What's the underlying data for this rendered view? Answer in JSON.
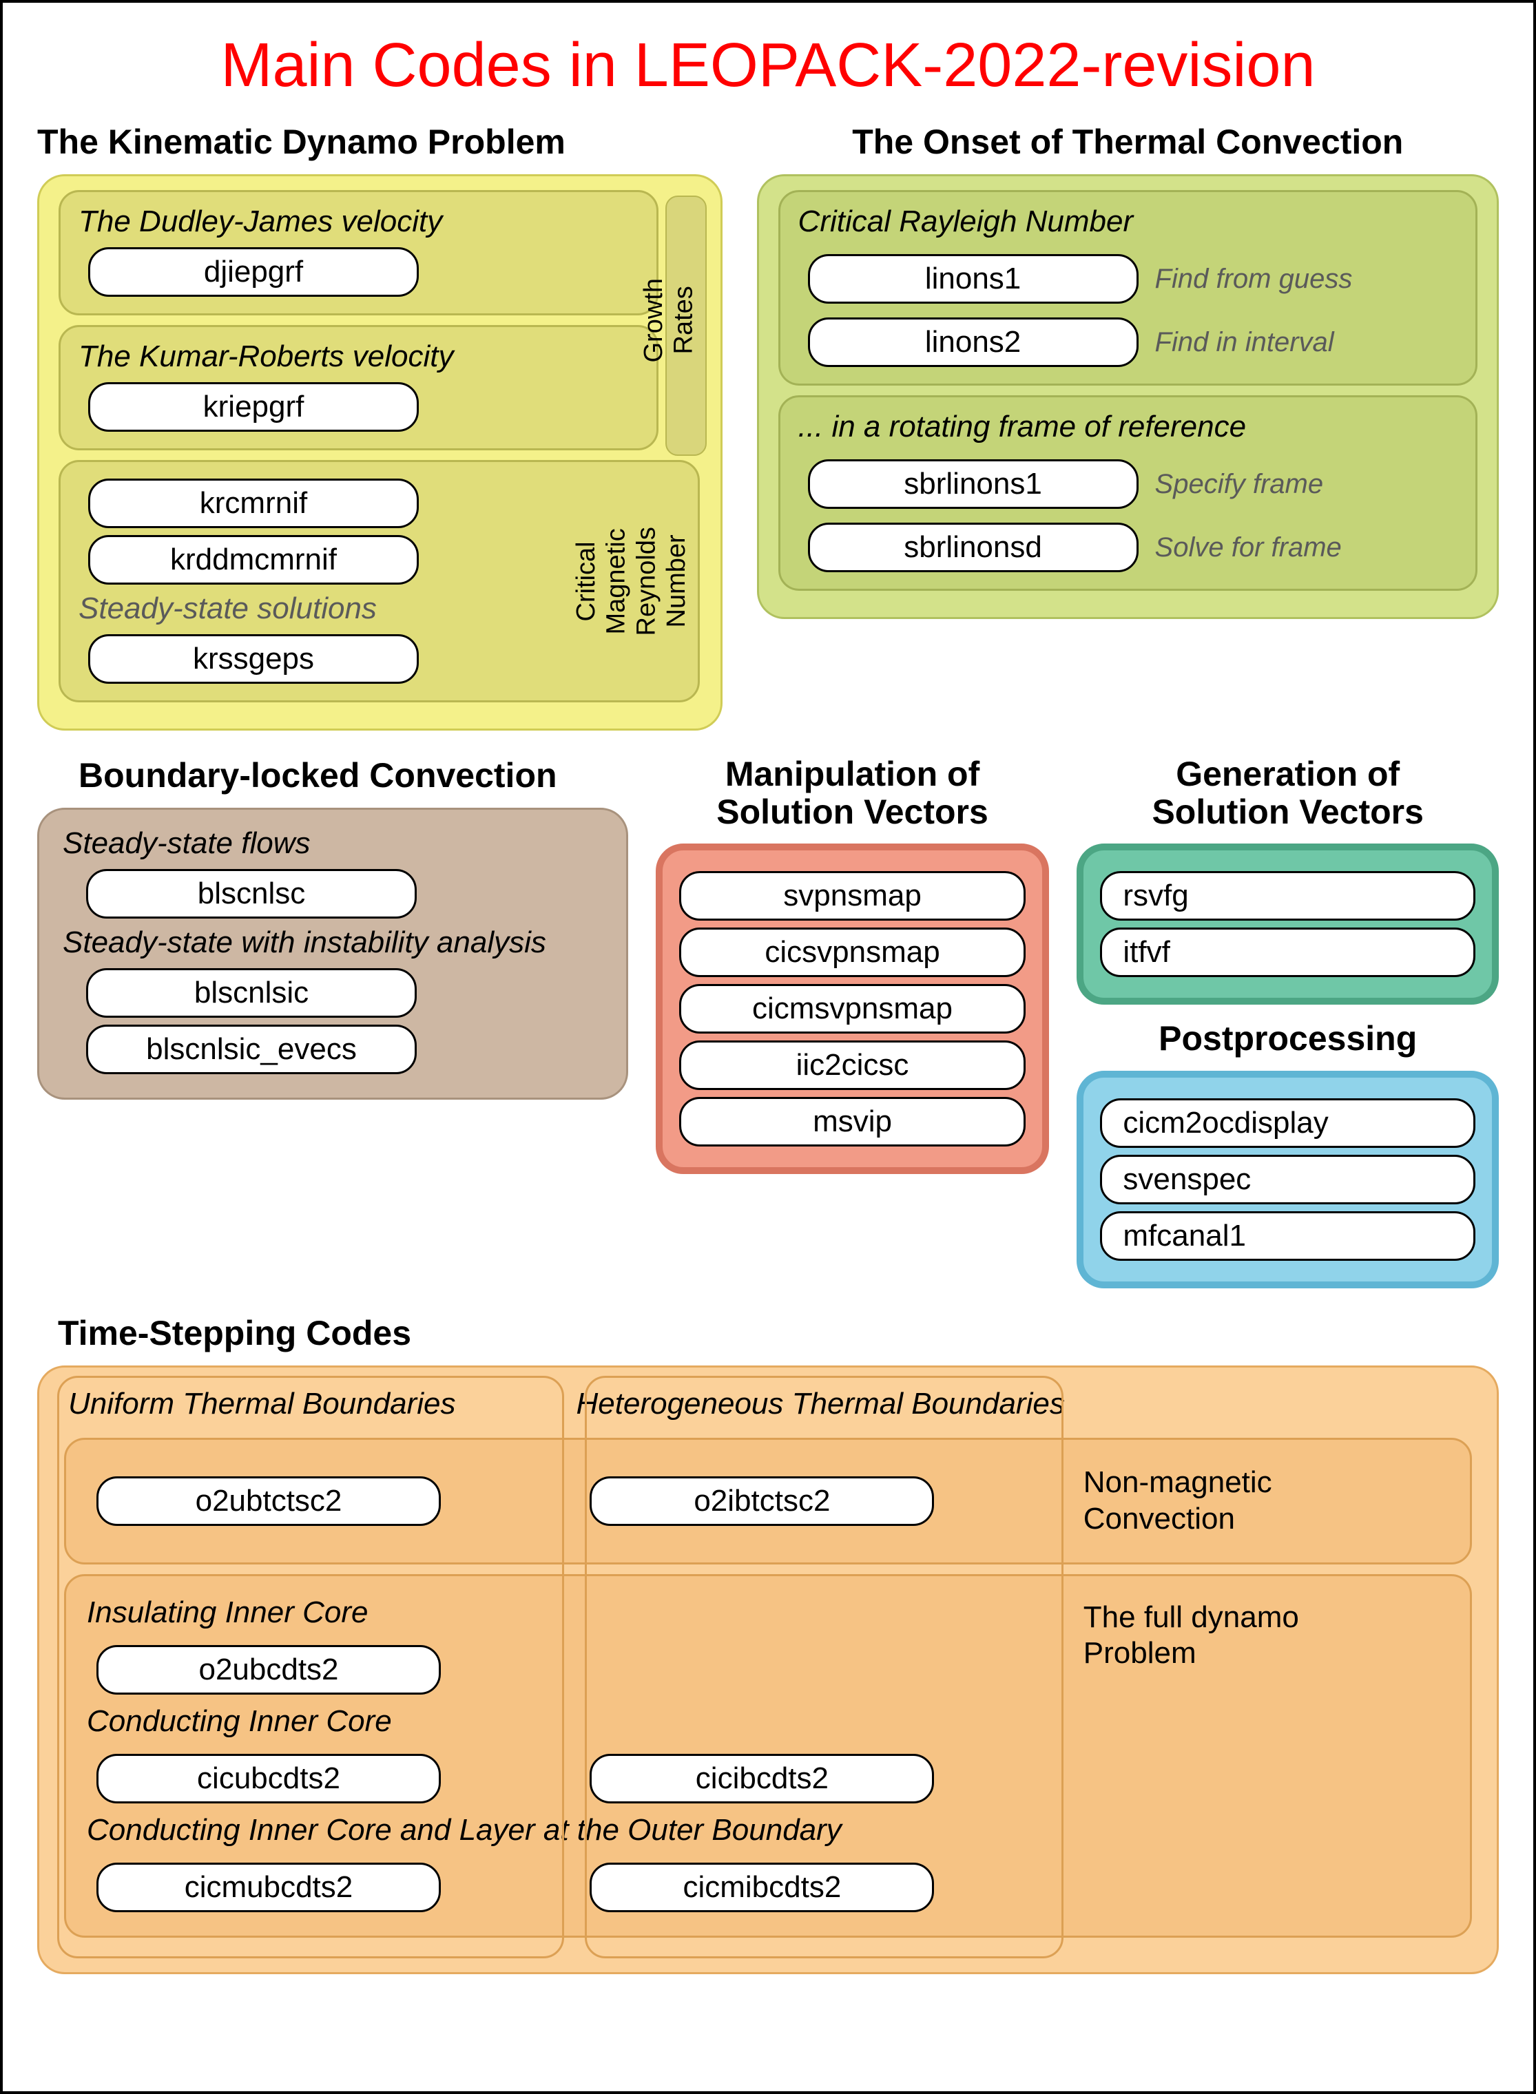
{
  "page": {
    "title": "Main Codes in LEOPACK-2022-revision"
  },
  "colors": {
    "yellow_outer": {
      "fill": "#f4f18a",
      "stroke": "#d0cc56"
    },
    "yellow_inner": {
      "fill": "#e0dd7a",
      "stroke": "#b9b751"
    },
    "green_outer": {
      "fill": "#d3e28a",
      "stroke": "#b0c15f"
    },
    "green_inner": {
      "fill": "#c4d478",
      "stroke": "#a3b256"
    },
    "brown": {
      "fill": "#cdb7a3",
      "stroke": "#a8927d"
    },
    "salmon": {
      "fill": "#f29b87",
      "stroke": "#d97560"
    },
    "teal": {
      "fill": "#6fc7a7",
      "stroke": "#4ca684"
    },
    "blue": {
      "fill": "#90d3ea",
      "stroke": "#5fb5d4"
    },
    "orange_outer": {
      "fill": "#fbd19a",
      "stroke": "#e5aa5f"
    },
    "orange_inner": {
      "fill": "#f6c384",
      "stroke": "#dca054"
    },
    "growth_rates_band": "#d9d67b"
  },
  "kinematic": {
    "heading": "The Kinematic Dynamo Problem",
    "dj": {
      "title": "The Dudley-James velocity",
      "code": "djiepgrf"
    },
    "kr": {
      "title": "The Kumar-Roberts velocity",
      "code": "kriepgrf"
    },
    "growth_label": "Growth Rates",
    "critmag": {
      "codes": [
        "krcmrnif",
        "krddmcmrnif"
      ],
      "steady_label": "Steady-state solutions",
      "steady_code": "krssgeps",
      "vlabel_line1": "Critical Magnetic",
      "vlabel_line2": "Reynolds Number"
    }
  },
  "onset": {
    "heading": "The Onset of Thermal Convection",
    "rayleigh": {
      "title": "Critical Rayleigh Number",
      "items": [
        {
          "code": "linons1",
          "note": "Find from guess"
        },
        {
          "code": "linons2",
          "note": "Find in interval"
        }
      ]
    },
    "rotating": {
      "title": "... in a rotating frame of reference",
      "items": [
        {
          "code": "sbrlinons1",
          "note": "Specify frame"
        },
        {
          "code": "sbrlinonsd",
          "note": "Solve for frame"
        }
      ]
    }
  },
  "blc": {
    "heading": "Boundary-locked Convection",
    "steady_label": "Steady-state flows",
    "steady_code": "blscnlsc",
    "instab_label": "Steady-state with instability analysis",
    "instab_codes": [
      "blscnlsic",
      "blscnlsic_evecs"
    ]
  },
  "manip": {
    "heading_line1": "Manipulation of",
    "heading_line2": "Solution Vectors",
    "codes": [
      "svpnsmap",
      "cicsvpnsmap",
      "cicmsvpnsmap",
      "iic2cicsc",
      "msvip"
    ]
  },
  "gen": {
    "heading_line1": "Generation of",
    "heading_line2": "Solution Vectors",
    "codes": [
      "rsvfg",
      "itfvf"
    ]
  },
  "post": {
    "heading": "Postprocessing",
    "codes": [
      "cicm2ocdisplay",
      "svenspec",
      "mfcanal1"
    ]
  },
  "timestepping": {
    "heading": "Time-Stepping Codes",
    "col1_label": "Uniform Thermal Boundaries",
    "col2_label": "Heterogeneous Thermal Boundaries",
    "nonmag": {
      "label_line1": "Non-magnetic",
      "label_line2": "Convection",
      "uniform": "o2ubtctsc2",
      "hetero": "o2ibtctsc2"
    },
    "full": {
      "label_line1": "The full dynamo",
      "label_line2": "Problem",
      "insulating_label": "Insulating Inner Core",
      "insulating_uniform": "o2ubcdts2",
      "conducting_label": "Conducting Inner Core",
      "conducting_uniform": "cicubcdts2",
      "conducting_hetero": "cicibcdts2",
      "layer_label": "Conducting Inner Core and Layer at the Outer Boundary",
      "layer_uniform": "cicmubcdts2",
      "layer_hetero": "cicmibcdts2"
    }
  }
}
